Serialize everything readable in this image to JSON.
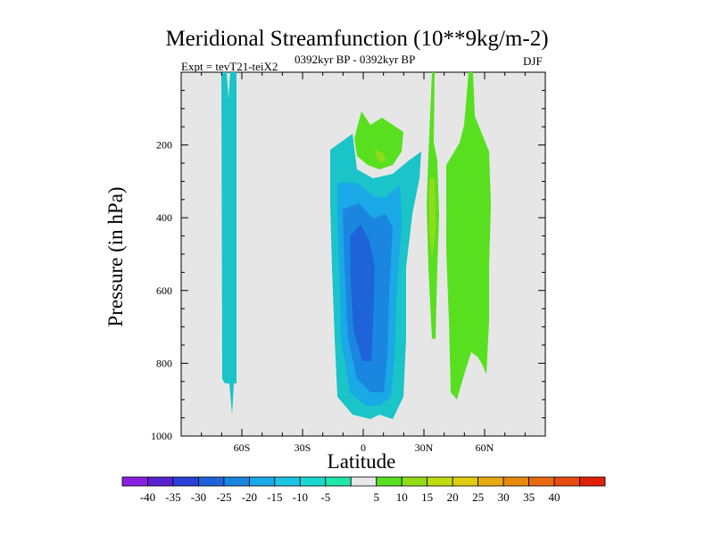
{
  "chart_data": {
    "type": "contour",
    "title": "Meridional Streamfunction (10**9kg/m-2)",
    "subtitle_left": "Expt = tevT21-teiX2",
    "subtitle_center": "0392kyr BP - 0392kyr BP",
    "subtitle_right": "DJF",
    "xlabel": "Latitude",
    "ylabel": "Pressure (in hPa)",
    "xlim": [
      -90,
      90
    ],
    "ylim": [
      1000,
      0
    ],
    "x_ticks": [
      -60,
      -30,
      0,
      30,
      60
    ],
    "x_tick_labels": [
      "60S",
      "30S",
      "0",
      "30N",
      "60N"
    ],
    "y_ticks": [
      200,
      400,
      600,
      800,
      1000
    ],
    "y_tick_labels": [
      "200",
      "400",
      "600",
      "800",
      "1000"
    ],
    "colorbar": {
      "labels": [
        "-40",
        "-35",
        "-30",
        "-25",
        "-20",
        "-15",
        "-10",
        "-5",
        "5",
        "10",
        "15",
        "20",
        "25",
        "30",
        "35",
        "40"
      ],
      "colors": [
        "#8a1fe0",
        "#5a1fd0",
        "#2a3fd8",
        "#1e64d8",
        "#1a86e0",
        "#1aa8e6",
        "#1ac4e2",
        "#18d8d0",
        "#20e6a8",
        "#e8e8e8",
        "#58e020",
        "#90dc18",
        "#c0dc10",
        "#e0cc10",
        "#e8aa10",
        "#e88a10",
        "#e86a10",
        "#e84a10",
        "#e02008"
      ]
    },
    "contours": [
      {
        "level": -5,
        "color": "#1ac4c8",
        "note": "southern polar cell band near 65S"
      },
      {
        "level": -5,
        "color": "#1ac4c8",
        "note": "tropical negative cell outer region"
      },
      {
        "level": -10,
        "color": "#1aa8e6"
      },
      {
        "level": -15,
        "color": "#1a86e0"
      },
      {
        "level": -20,
        "color": "#1e64d8"
      },
      {
        "level": 5,
        "color": "#58e020",
        "note": "upper tropics positive cell"
      },
      {
        "level": 10,
        "color": "#90dc18"
      },
      {
        "level": 5,
        "color": "#58e020",
        "note": "northern mid-latitude positive cells"
      }
    ]
  }
}
